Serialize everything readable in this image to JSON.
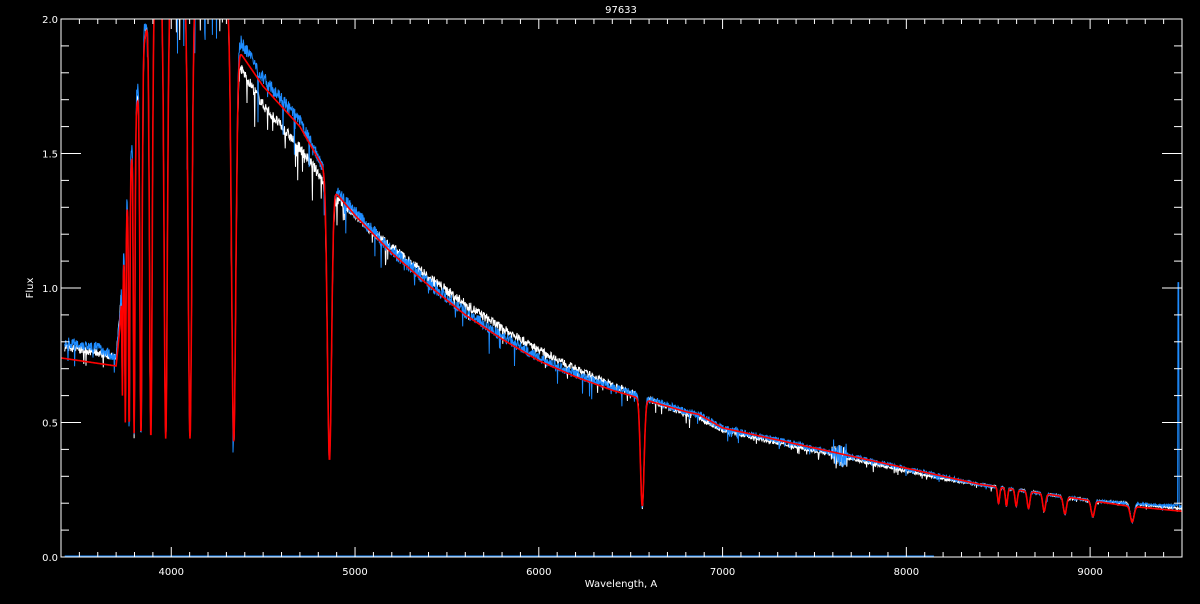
{
  "chart_data": {
    "type": "line",
    "title": "97633",
    "xlabel": "Wavelength, A",
    "ylabel": "Flux",
    "xlim": [
      3400,
      9500
    ],
    "ylim": [
      0.0,
      2.0
    ],
    "xticks": [
      4000,
      5000,
      6000,
      7000,
      8000,
      9000
    ],
    "yticks": [
      0.0,
      0.5,
      1.0,
      1.5,
      2.0
    ],
    "ytick_labels": [
      "0.0",
      "0.5",
      "1.0",
      "1.5",
      "2.0"
    ],
    "grid": false,
    "background": "#000000",
    "series": [
      {
        "color": "#ffffff",
        "noise": 0.02,
        "x_range": [
          3420,
          9500
        ],
        "gap": [
          6830,
          6870
        ],
        "continuum": [
          [
            3420,
            0.78
          ],
          [
            3600,
            0.76
          ],
          [
            3700,
            0.74
          ],
          [
            3720,
            0.9
          ],
          [
            3760,
            1.3
          ],
          [
            3800,
            1.6
          ],
          [
            3850,
            1.9
          ],
          [
            3900,
            2.1
          ],
          [
            4300,
            2.1
          ],
          [
            4350,
            1.85
          ],
          [
            4500,
            1.68
          ],
          [
            4700,
            1.52
          ],
          [
            4850,
            1.38
          ],
          [
            4900,
            1.33
          ],
          [
            5000,
            1.27
          ],
          [
            5200,
            1.15
          ],
          [
            5400,
            1.04
          ],
          [
            5600,
            0.94
          ],
          [
            5800,
            0.85
          ],
          [
            6000,
            0.77
          ],
          [
            6200,
            0.7
          ],
          [
            6400,
            0.64
          ],
          [
            6550,
            0.6
          ],
          [
            6800,
            0.53
          ],
          [
            6870,
            0.52
          ],
          [
            7000,
            0.47
          ],
          [
            7200,
            0.44
          ],
          [
            7400,
            0.41
          ],
          [
            7600,
            0.38
          ],
          [
            7800,
            0.35
          ],
          [
            8000,
            0.32
          ],
          [
            8200,
            0.29
          ],
          [
            8400,
            0.27
          ],
          [
            8600,
            0.25
          ],
          [
            8800,
            0.23
          ],
          [
            9000,
            0.21
          ],
          [
            9200,
            0.2
          ],
          [
            9500,
            0.18
          ]
        ]
      },
      {
        "color": "#1e8cff",
        "noise": 0.025,
        "x_range": [
          3420,
          9500
        ],
        "spike": [
          9480,
          1.02
        ],
        "continuum": [
          [
            3420,
            0.8
          ],
          [
            3600,
            0.78
          ],
          [
            3700,
            0.74
          ],
          [
            3720,
            0.9
          ],
          [
            3760,
            1.35
          ],
          [
            3800,
            1.65
          ],
          [
            3850,
            1.95
          ],
          [
            3900,
            2.1
          ],
          [
            4300,
            2.1
          ],
          [
            4350,
            1.95
          ],
          [
            4500,
            1.78
          ],
          [
            4700,
            1.62
          ],
          [
            4850,
            1.42
          ],
          [
            4900,
            1.36
          ],
          [
            5000,
            1.28
          ],
          [
            5200,
            1.14
          ],
          [
            5400,
            1.02
          ],
          [
            5600,
            0.91
          ],
          [
            5800,
            0.82
          ],
          [
            6000,
            0.74
          ],
          [
            6200,
            0.68
          ],
          [
            6400,
            0.63
          ],
          [
            6550,
            0.6
          ],
          [
            6800,
            0.54
          ],
          [
            6870,
            0.53
          ],
          [
            7000,
            0.48
          ],
          [
            7200,
            0.45
          ],
          [
            7400,
            0.42
          ],
          [
            7600,
            0.39
          ],
          [
            7800,
            0.36
          ],
          [
            8000,
            0.33
          ],
          [
            8200,
            0.3
          ],
          [
            8400,
            0.27
          ],
          [
            8600,
            0.25
          ],
          [
            8800,
            0.23
          ],
          [
            9000,
            0.21
          ],
          [
            9200,
            0.2
          ],
          [
            9500,
            0.19
          ]
        ]
      },
      {
        "color": "#ff0000",
        "noise": 0.0,
        "x_range": [
          3400,
          9500
        ],
        "continuum": [
          [
            3400,
            0.74
          ],
          [
            3600,
            0.72
          ],
          [
            3700,
            0.71
          ],
          [
            3720,
            0.85
          ],
          [
            3760,
            1.3
          ],
          [
            3800,
            1.6
          ],
          [
            3850,
            1.9
          ],
          [
            3900,
            2.1
          ],
          [
            4300,
            2.1
          ],
          [
            4350,
            1.9
          ],
          [
            4500,
            1.75
          ],
          [
            4700,
            1.6
          ],
          [
            4850,
            1.42
          ],
          [
            4900,
            1.35
          ],
          [
            5000,
            1.27
          ],
          [
            5200,
            1.13
          ],
          [
            5400,
            1.01
          ],
          [
            5600,
            0.9
          ],
          [
            5800,
            0.81
          ],
          [
            6000,
            0.73
          ],
          [
            6200,
            0.67
          ],
          [
            6400,
            0.62
          ],
          [
            6550,
            0.59
          ],
          [
            6800,
            0.54
          ],
          [
            6870,
            0.53
          ],
          [
            7000,
            0.48
          ],
          [
            7200,
            0.45
          ],
          [
            7400,
            0.42
          ],
          [
            7600,
            0.39
          ],
          [
            7800,
            0.36
          ],
          [
            8000,
            0.33
          ],
          [
            8200,
            0.3
          ],
          [
            8400,
            0.27
          ],
          [
            8600,
            0.25
          ],
          [
            8800,
            0.23
          ],
          [
            9000,
            0.21
          ],
          [
            9200,
            0.19
          ],
          [
            9500,
            0.17
          ]
        ]
      }
    ],
    "absorption_lines": [
      [
        3734,
        0.6,
        3
      ],
      [
        3750,
        0.5,
        4
      ],
      [
        3771,
        0.47,
        5
      ],
      [
        3798,
        0.46,
        6
      ],
      [
        3835,
        0.45,
        8
      ],
      [
        3889,
        0.44,
        10
      ],
      [
        3970,
        0.44,
        12
      ],
      [
        4102,
        0.44,
        14
      ],
      [
        4340,
        0.43,
        16
      ],
      [
        4861,
        0.36,
        16
      ],
      [
        6563,
        0.19,
        14
      ],
      [
        8502,
        0.2,
        8
      ],
      [
        8545,
        0.19,
        8
      ],
      [
        8598,
        0.19,
        9
      ],
      [
        8665,
        0.18,
        10
      ],
      [
        8750,
        0.17,
        11
      ],
      [
        8863,
        0.16,
        12
      ],
      [
        9015,
        0.15,
        13
      ],
      [
        9229,
        0.13,
        14
      ]
    ]
  }
}
